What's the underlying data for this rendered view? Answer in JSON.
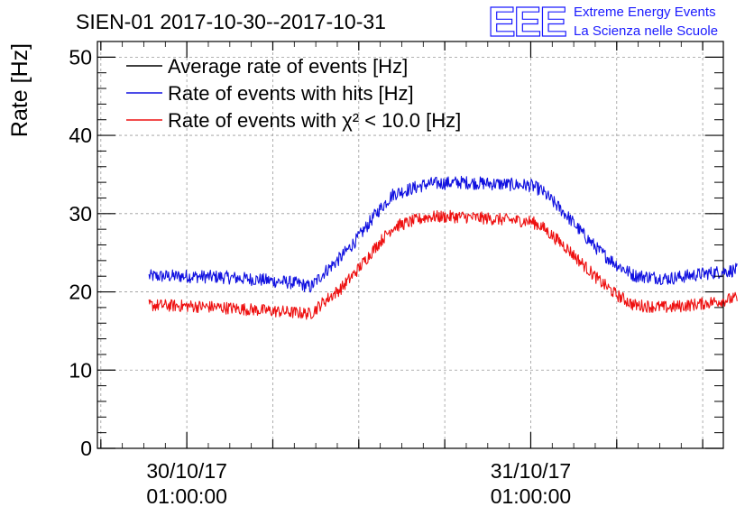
{
  "header": {
    "title": "SIEN-01 2017-10-30--2017-10-31"
  },
  "logo": {
    "mark": "EEE",
    "line1": "Extreme Energy Events",
    "line2": "La Scienza nelle Scuole"
  },
  "chart_data": {
    "type": "line",
    "title": "SIEN-01 2017-10-30--2017-10-31",
    "ylabel": "Rate [Hz]",
    "xlabel": "",
    "ylim": [
      0,
      52
    ],
    "xlim": [
      -0.26,
      1.56
    ],
    "y_ticks": [
      0,
      10,
      20,
      30,
      40,
      50
    ],
    "x_ticks": [
      {
        "value": 0,
        "label_line1": "30/10/17",
        "label_line2": "01:00:00"
      },
      {
        "value": 1,
        "label_line1": "31/10/17",
        "label_line2": "01:00:00"
      }
    ],
    "grid": true,
    "legend_position": "top-left",
    "legend": [
      {
        "name": "Average rate of events [Hz]",
        "color": "#000000"
      },
      {
        "name": "Rate of events with hits [Hz]",
        "color": "#1010e0"
      },
      {
        "name": "Rate of events with χ² < 10.0 [Hz]",
        "color": "#ee1010"
      }
    ],
    "series": [
      {
        "name": "Rate of events with hits [Hz]",
        "color": "#1010e0",
        "noise": 0.85,
        "x": [
          -0.11,
          0.0,
          0.1,
          0.2,
          0.3,
          0.33,
          0.36,
          0.4,
          0.45,
          0.5,
          0.55,
          0.6,
          0.7,
          0.8,
          0.9,
          1.0,
          1.03,
          1.1,
          1.15,
          1.2,
          1.25,
          1.3,
          1.4,
          1.5,
          1.6
        ],
        "y": [
          22.0,
          22.0,
          21.9,
          21.6,
          21.2,
          21.0,
          20.6,
          22.5,
          24.5,
          27.0,
          30.0,
          32.5,
          33.8,
          34.0,
          33.8,
          33.6,
          33.0,
          30.0,
          27.5,
          25.2,
          23.5,
          22.1,
          21.7,
          22.3,
          22.8
        ]
      },
      {
        "name": "Rate of events with χ² < 10.0 [Hz]",
        "color": "#ee1010",
        "noise": 0.8,
        "x": [
          -0.11,
          0.0,
          0.1,
          0.2,
          0.3,
          0.33,
          0.36,
          0.4,
          0.45,
          0.5,
          0.55,
          0.6,
          0.7,
          0.8,
          0.9,
          1.0,
          1.03,
          1.1,
          1.15,
          1.2,
          1.25,
          1.3,
          1.4,
          1.5,
          1.6
        ],
        "y": [
          18.3,
          18.2,
          18.0,
          17.7,
          17.4,
          17.3,
          17.2,
          18.8,
          20.5,
          23.0,
          25.8,
          28.3,
          29.6,
          29.6,
          29.3,
          29.0,
          28.4,
          25.8,
          23.6,
          21.4,
          19.6,
          18.3,
          18.0,
          18.5,
          19.2
        ]
      },
      {
        "name": "Average rate of events [Hz]",
        "color": "#000000",
        "x": [],
        "y": []
      }
    ],
    "data_end": 1.6
  }
}
